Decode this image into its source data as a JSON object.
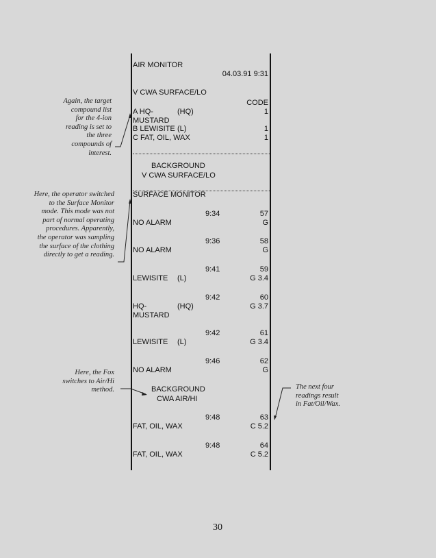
{
  "header": {
    "title": "AIR MONITOR",
    "datetime": "04.03.91  9:31",
    "method": "V CWA SURFACE/LO",
    "code_label": "CODE"
  },
  "compounds": [
    {
      "letter_name": "A HQ-",
      "abbr": "(HQ)",
      "line2": "MUSTARD",
      "code": "1"
    },
    {
      "letter_name": "B LEWISITE",
      "abbr": "(L)",
      "code": "1"
    },
    {
      "letter_name": "C FAT, OIL, WAX",
      "code": "1"
    }
  ],
  "background1": {
    "line1": "BACKGROUND",
    "line2": "V CWA SURFACE/LO"
  },
  "mode": "SURFACE MONITOR",
  "readings": [
    {
      "time": "9:34",
      "num": "57",
      "result": "NO ALARM",
      "code": "G"
    },
    {
      "time": "9:36",
      "num": "58",
      "result": "NO ALARM",
      "code": "G"
    },
    {
      "time": "9:41",
      "num": "59",
      "result": "LEWISITE",
      "abbr": "(L)",
      "code": "G  3.4"
    },
    {
      "time": "9:42",
      "num": "60",
      "result": "HQ-",
      "abbr": "(HQ)",
      "result2": "MUSTARD",
      "code": "G  3.7"
    },
    {
      "time": "9:42",
      "num": "61",
      "result": "LEWISITE",
      "abbr": "(L)",
      "code": "G  3.4"
    },
    {
      "time": "9:46",
      "num": "62",
      "result": "NO ALARM",
      "code": "G"
    },
    {
      "time": "9:48",
      "num": "63",
      "result": "FAT, OIL, WAX",
      "code": "C  5.2"
    },
    {
      "time": "9:48",
      "num": "64",
      "result": "FAT, OIL, WAX",
      "code": "C  5.2"
    }
  ],
  "background2": {
    "line1": "BACKGROUND",
    "line2": "CWA AIR/HI"
  },
  "annotations": {
    "compound_list": [
      "Again, the target",
      "compound list",
      "for the 4-ion",
      "reading is set to",
      "the three",
      "compounds of",
      "interest."
    ],
    "surface_monitor": [
      "Here, the operator switched",
      "to the Surface Monitor",
      "mode.  This mode was not",
      "part of normal operating",
      "procedures.  Apparently,",
      "the operator was sampling",
      "the surface of the clothing",
      "directly to get a reading."
    ],
    "fox": [
      "Here, the Fox",
      "switches to Air/Hi",
      "method."
    ],
    "next_four": [
      "The next four",
      "readings result",
      "in Fat/Oil/Wax."
    ]
  },
  "page_number": "30"
}
